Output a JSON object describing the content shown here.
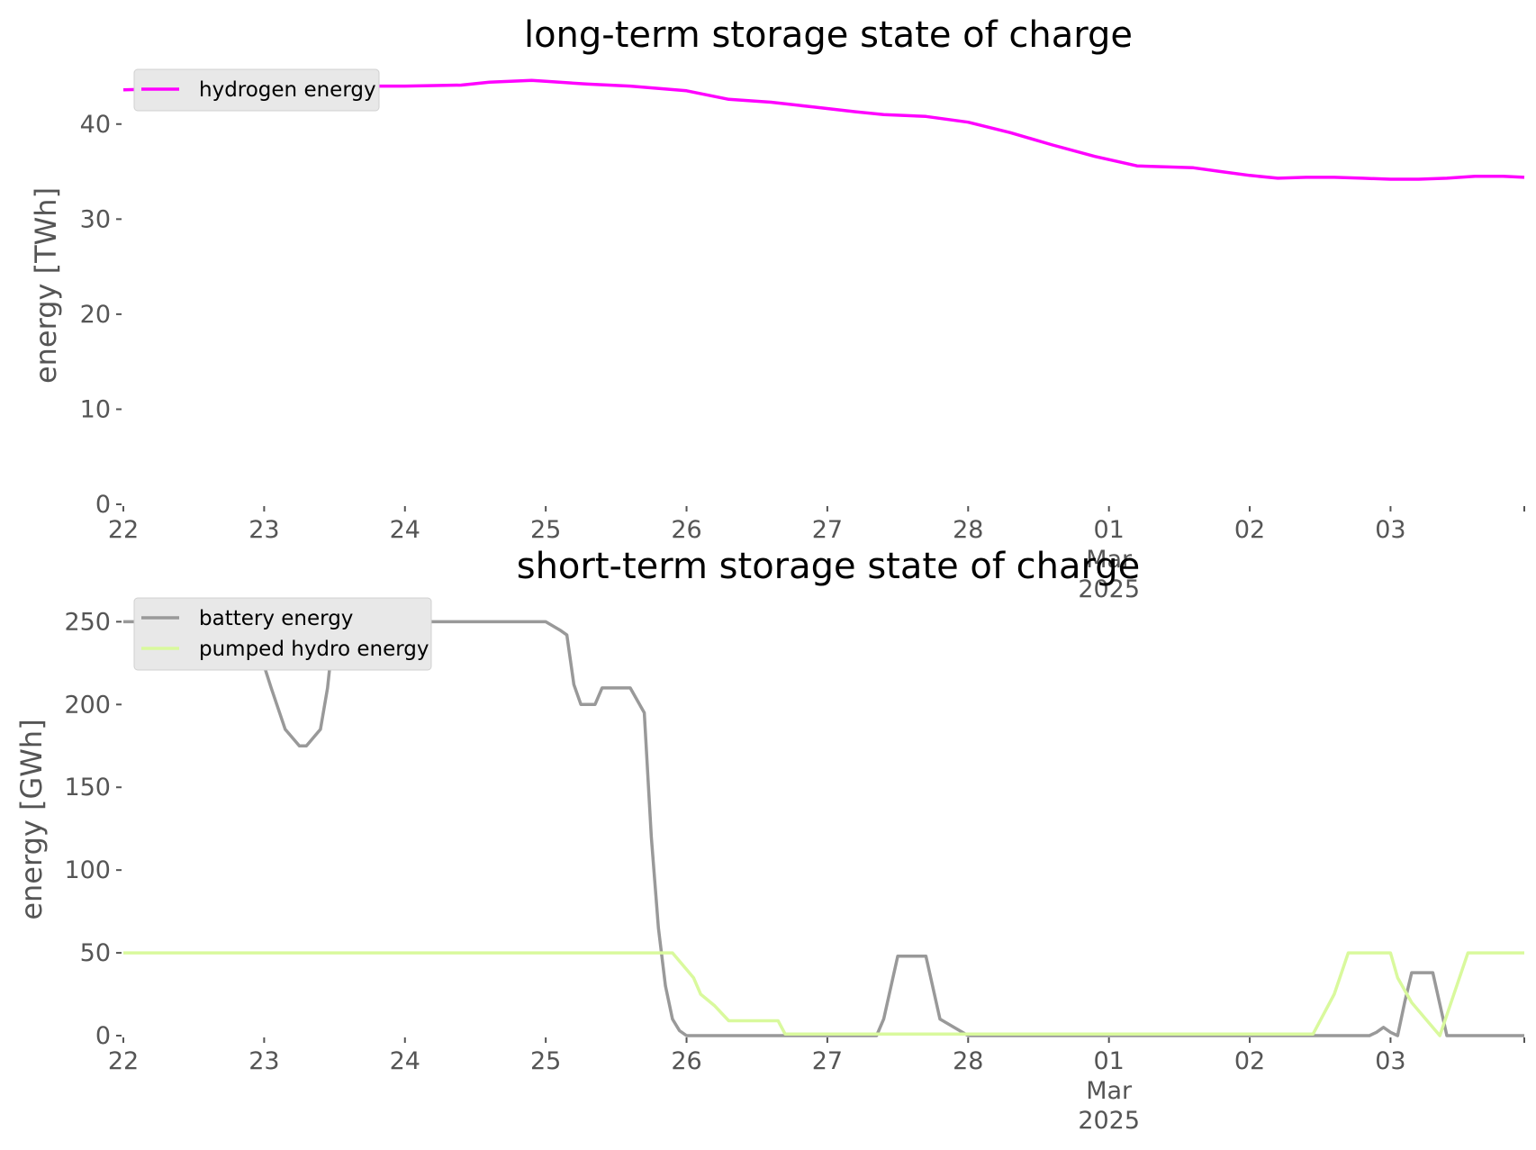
{
  "chart_data": [
    {
      "type": "line",
      "title": "long-term storage state of charge",
      "xlabel": "",
      "ylabel": "energy [TWh]",
      "ylim": [
        0,
        45
      ],
      "y_ticks": [
        0,
        10,
        20,
        30,
        40
      ],
      "x_tick_labels": [
        {
          "day": 22,
          "text": "22",
          "sub": ""
        },
        {
          "day": 23,
          "text": "23",
          "sub": ""
        },
        {
          "day": 24,
          "text": "24",
          "sub": ""
        },
        {
          "day": 25,
          "text": "25",
          "sub": ""
        },
        {
          "day": 26,
          "text": "26",
          "sub": ""
        },
        {
          "day": 27,
          "text": "27",
          "sub": ""
        },
        {
          "day": 28,
          "text": "28",
          "sub": ""
        },
        {
          "day": 29,
          "text": "01",
          "sub": "Mar\n2025"
        },
        {
          "day": 30,
          "text": "02",
          "sub": ""
        },
        {
          "day": 31,
          "text": "03",
          "sub": ""
        }
      ],
      "x_range_days": [
        22,
        31.95
      ],
      "grid": false,
      "legend": "top-left",
      "series": [
        {
          "name": "hydrogen energy",
          "color": "#ff00ff",
          "x": [
            22.0,
            22.5,
            23.0,
            23.5,
            24.0,
            24.4,
            24.6,
            24.9,
            25.0,
            25.3,
            25.6,
            26.0,
            26.3,
            26.6,
            26.9,
            27.2,
            27.4,
            27.7,
            28.0,
            28.3,
            28.6,
            28.9,
            29.2,
            29.4,
            29.6,
            29.8,
            30.0,
            30.2,
            30.4,
            30.6,
            30.8,
            31.0,
            31.2,
            31.4,
            31.6,
            31.8,
            31.95
          ],
          "y": [
            43.6,
            43.8,
            44.0,
            44.0,
            44.0,
            44.1,
            44.4,
            44.6,
            44.5,
            44.2,
            44.0,
            43.5,
            42.6,
            42.3,
            41.8,
            41.3,
            41.0,
            40.8,
            40.2,
            39.1,
            37.8,
            36.6,
            35.6,
            35.5,
            35.4,
            35.0,
            34.6,
            34.3,
            34.4,
            34.4,
            34.3,
            34.2,
            34.2,
            34.3,
            34.5,
            34.5,
            34.4
          ]
        }
      ]
    },
    {
      "type": "line",
      "title": "short-term storage state of charge",
      "xlabel": "",
      "ylabel": "energy [GWh]",
      "ylim": [
        0,
        260
      ],
      "y_ticks": [
        0,
        50,
        100,
        150,
        200,
        250
      ],
      "x_tick_labels": [
        {
          "day": 22,
          "text": "22",
          "sub": ""
        },
        {
          "day": 23,
          "text": "23",
          "sub": ""
        },
        {
          "day": 24,
          "text": "24",
          "sub": ""
        },
        {
          "day": 25,
          "text": "25",
          "sub": ""
        },
        {
          "day": 26,
          "text": "26",
          "sub": ""
        },
        {
          "day": 27,
          "text": "27",
          "sub": ""
        },
        {
          "day": 28,
          "text": "28",
          "sub": ""
        },
        {
          "day": 29,
          "text": "01",
          "sub": "Mar\n2025"
        },
        {
          "day": 30,
          "text": "02",
          "sub": ""
        },
        {
          "day": 31,
          "text": "03",
          "sub": ""
        }
      ],
      "x_range_days": [
        22,
        31.95
      ],
      "grid": false,
      "legend": "top-left",
      "series": [
        {
          "name": "battery energy",
          "color": "#999999",
          "x": [
            22.0,
            22.9,
            23.05,
            23.15,
            23.25,
            23.3,
            23.4,
            23.45,
            23.5,
            23.6,
            23.7,
            24.0,
            25.0,
            25.1,
            25.15,
            25.2,
            25.25,
            25.35,
            25.4,
            25.5,
            25.6,
            25.7,
            25.75,
            25.8,
            25.85,
            25.9,
            25.95,
            26.0,
            26.5,
            27.0,
            27.35,
            27.4,
            27.5,
            27.7,
            27.8,
            28.0,
            28.4,
            28.5,
            28.6,
            28.75,
            28.8,
            29.5,
            29.7,
            29.78,
            29.85,
            29.95,
            30.3,
            30.45,
            30.6,
            30.65,
            30.7,
            30.8,
            30.85,
            30.9,
            30.95,
            31.0,
            31.05,
            31.1,
            31.15,
            31.2,
            31.3,
            31.4,
            31.45,
            31.5,
            31.6,
            31.7,
            31.75,
            31.8,
            31.85,
            31.9,
            31.95
          ],
          "y": [
            250,
            250,
            210,
            185,
            175,
            175,
            185,
            210,
            250,
            250,
            250,
            250,
            250,
            245,
            242,
            212,
            200,
            200,
            210,
            210,
            210,
            195,
            120,
            65,
            30,
            10,
            3,
            0,
            0,
            0,
            0,
            10,
            48,
            48,
            10,
            0,
            0,
            0,
            0,
            0,
            0,
            0,
            0,
            0,
            0,
            0,
            0,
            0,
            0,
            0,
            0,
            0,
            0,
            2,
            5,
            2,
            0,
            20,
            38,
            38,
            38,
            0,
            0,
            0,
            0,
            0,
            0,
            0,
            0,
            0,
            0
          ],
          "segments": "see_script"
        },
        {
          "name": "pumped hydro energy",
          "color": "#d9f99d",
          "x": [
            22.0,
            25.9,
            26.0,
            26.05,
            26.1,
            26.2,
            26.3,
            26.4,
            26.5,
            26.65,
            26.7,
            26.8,
            28.0,
            29.0,
            30.0,
            30.35,
            30.45,
            30.6,
            30.7,
            30.8,
            30.9,
            31.0,
            31.05,
            31.15,
            31.25,
            31.35,
            31.45,
            31.55,
            31.65,
            31.8,
            31.95
          ],
          "y": [
            50,
            50,
            40,
            35,
            25,
            18,
            9,
            9,
            9,
            9,
            1,
            1,
            1,
            1,
            1,
            1,
            1,
            25,
            50,
            50,
            50,
            50,
            35,
            20,
            10,
            0,
            25,
            50,
            50,
            50,
            50
          ]
        }
      ]
    }
  ]
}
